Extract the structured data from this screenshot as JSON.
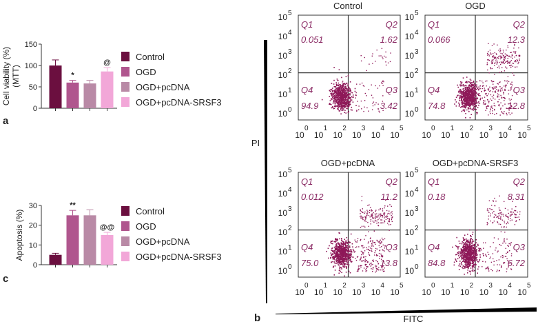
{
  "colors": {
    "control": "#6b0f3f",
    "ogd": "#b0568e",
    "ogd_pcdna": "#b98aa6",
    "ogd_pcdna_srsf3": "#f2a7d8",
    "quadrant_text": "#8a2a64",
    "dots": "#8e1858",
    "axis": "#333333"
  },
  "chart_data": [
    {
      "panel_label": "a",
      "type": "bar",
      "ylabel": "Cell viability (%)",
      "ylabel2": "(MTT)",
      "ylim": [
        0,
        150
      ],
      "yticks": [
        "0",
        "50",
        "100",
        "150"
      ],
      "categories": [
        "Control",
        "OGD",
        "OGD+pcDNA",
        "OGD+pcDNA-SRSF3"
      ],
      "values": [
        100,
        60,
        58,
        86
      ],
      "errors": [
        13,
        5,
        7,
        9
      ],
      "annotations": [
        "",
        "*",
        "",
        "@"
      ],
      "legend": [
        "Control",
        "OGD",
        "OGD+pcDNA",
        "OGD+pcDNA-SRSF3"
      ]
    },
    {
      "panel_label": "c",
      "type": "bar",
      "ylabel": "Apoptosis (%)",
      "ylim": [
        0,
        30
      ],
      "yticks": [
        "0",
        "10",
        "20",
        "30"
      ],
      "categories": [
        "Control",
        "OGD",
        "OGD+pcDNA",
        "OGD+pcDNA-SRSF3"
      ],
      "values": [
        5,
        25,
        25,
        15
      ],
      "errors": [
        0.8,
        2.5,
        2.8,
        1.4
      ],
      "annotations": [
        "",
        "**",
        "",
        "@@"
      ],
      "legend": [
        "Control",
        "OGD",
        "OGD+pcDNA",
        "OGD+pcDNA-SRSF3"
      ]
    },
    {
      "panel_label": "b",
      "type": "scatter",
      "xlabel": "FITC",
      "ylabel": "PI",
      "exp_labels": [
        "0",
        "1",
        "2",
        "3",
        "4",
        "5"
      ],
      "log_base": "10",
      "quadrant_names": [
        "Q1",
        "Q2",
        "Q3",
        "Q4"
      ],
      "plots": [
        {
          "title": "Control",
          "q1": "0.051",
          "q2": "1.62",
          "q3": "3.42",
          "q4": "94.9"
        },
        {
          "title": "OGD",
          "q1": "0.066",
          "q2": "12.3",
          "q3": "12.8",
          "q4": "74.8"
        },
        {
          "title": "OGD+pcDNA",
          "q1": "0.012",
          "q2": "11.2",
          "q3": "13.8",
          "q4": "75.0"
        },
        {
          "title": "OGD+pcDNA-SRSF3",
          "q1": "0.18",
          "q2": "8.31",
          "q3": "6.72",
          "q4": "84.8"
        }
      ]
    }
  ]
}
